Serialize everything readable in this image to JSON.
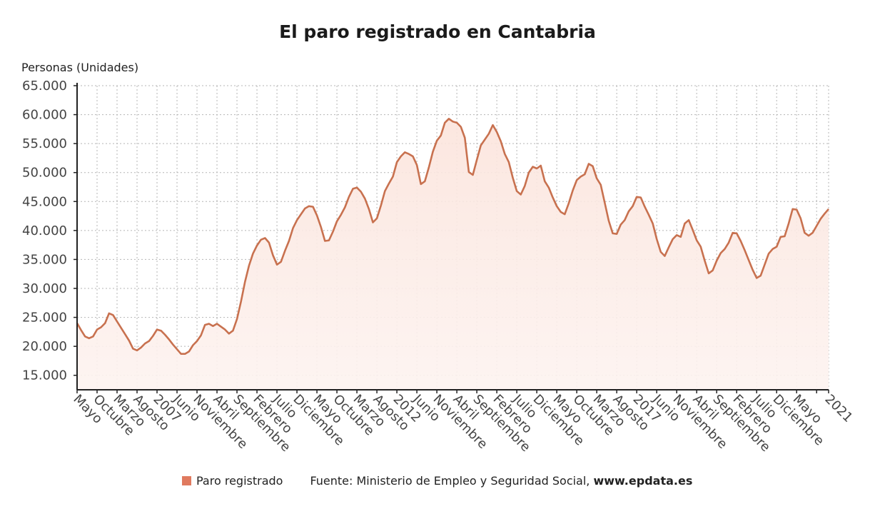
{
  "chart_data": {
    "type": "area",
    "title": "El paro registrado en Cantabria",
    "ylabel": "Personas (Unidades)",
    "xlabel": "",
    "x_start": "2005-05",
    "x_end": "2021-01",
    "x_frequency": "monthly",
    "ylim": [
      12500,
      65000
    ],
    "y_ticks": [
      15000,
      20000,
      25000,
      30000,
      35000,
      40000,
      45000,
      50000,
      55000,
      60000,
      65000
    ],
    "y_tick_labels": [
      "15.000",
      "20.000",
      "25.000",
      "30.000",
      "35.000",
      "40.000",
      "45.000",
      "50.000",
      "55.000",
      "60.000",
      "65.000"
    ],
    "grid": true,
    "legend_position": "bottom",
    "colors": {
      "line": "#c8714f",
      "fill": "#fbe9e4",
      "legend_swatch": "#e07a5f"
    },
    "x_ticks": [
      {
        "date": "2005-05",
        "label": "Mayo"
      },
      {
        "date": "2005-10",
        "label": "Octubre"
      },
      {
        "date": "2006-03",
        "label": "Marzo"
      },
      {
        "date": "2006-08",
        "label": "Agosto"
      },
      {
        "date": "2007-01",
        "label": "2007"
      },
      {
        "date": "2007-06",
        "label": "Junio"
      },
      {
        "date": "2007-11",
        "label": "Noviembre"
      },
      {
        "date": "2008-04",
        "label": "Abril"
      },
      {
        "date": "2008-09",
        "label": "Septiembre"
      },
      {
        "date": "2009-02",
        "label": "Febrero"
      },
      {
        "date": "2009-07",
        "label": "Julio"
      },
      {
        "date": "2009-12",
        "label": "Diciembre"
      },
      {
        "date": "2010-05",
        "label": "Mayo"
      },
      {
        "date": "2010-10",
        "label": "Octubre"
      },
      {
        "date": "2011-03",
        "label": "Marzo"
      },
      {
        "date": "2011-08",
        "label": "Agosto"
      },
      {
        "date": "2012-01",
        "label": "2012"
      },
      {
        "date": "2012-06",
        "label": "Junio"
      },
      {
        "date": "2012-11",
        "label": "Noviembre"
      },
      {
        "date": "2013-04",
        "label": "Abril"
      },
      {
        "date": "2013-09",
        "label": "Septiembre"
      },
      {
        "date": "2014-02",
        "label": "Febrero"
      },
      {
        "date": "2014-07",
        "label": "Julio"
      },
      {
        "date": "2014-12",
        "label": "Diciembre"
      },
      {
        "date": "2015-05",
        "label": "Mayo"
      },
      {
        "date": "2015-10",
        "label": "Octubre"
      },
      {
        "date": "2016-03",
        "label": "Marzo"
      },
      {
        "date": "2016-08",
        "label": "Agosto"
      },
      {
        "date": "2017-01",
        "label": "2017"
      },
      {
        "date": "2017-06",
        "label": "Junio"
      },
      {
        "date": "2017-11",
        "label": "Noviembre"
      },
      {
        "date": "2018-04",
        "label": "Abril"
      },
      {
        "date": "2018-09",
        "label": "Septiembre"
      },
      {
        "date": "2019-02",
        "label": "Febrero"
      },
      {
        "date": "2019-07",
        "label": "Julio"
      },
      {
        "date": "2019-12",
        "label": "Diciembre"
      },
      {
        "date": "2020-05",
        "label": "Mayo"
      },
      {
        "date": "2021-01",
        "label": "2021"
      }
    ],
    "series": [
      {
        "name": "Paro registrado",
        "values": [
          24000,
          22800,
          21700,
          21400,
          21700,
          22900,
          23300,
          24000,
          25700,
          25400,
          24300,
          23200,
          22100,
          21000,
          19600,
          19300,
          19800,
          20500,
          20900,
          21800,
          22900,
          22700,
          22000,
          21200,
          20300,
          19500,
          18700,
          18700,
          19100,
          20200,
          20900,
          21900,
          23700,
          23900,
          23500,
          23900,
          23400,
          22900,
          22200,
          22700,
          24700,
          27700,
          31100,
          33900,
          36000,
          37400,
          38400,
          38700,
          37900,
          35700,
          34100,
          34600,
          36500,
          38200,
          40400,
          41800,
          42800,
          43800,
          44200,
          44100,
          42600,
          40600,
          38200,
          38300,
          39800,
          41600,
          42700,
          44000,
          45800,
          47200,
          47400,
          46700,
          45500,
          43700,
          41400,
          42100,
          44300,
          46800,
          48100,
          49300,
          51800,
          52800,
          53500,
          53200,
          52800,
          51300,
          48000,
          48500,
          50900,
          53600,
          55500,
          56400,
          58600,
          59300,
          58800,
          58600,
          57900,
          56000,
          50100,
          49600,
          52200,
          54700,
          55700,
          56700,
          58200,
          57000,
          55400,
          53200,
          51800,
          49100,
          46800,
          46200,
          47700,
          50000,
          51000,
          50700,
          51200,
          48500,
          47400,
          45700,
          44200,
          43200,
          42800,
          44700,
          46900,
          48700,
          49300,
          49700,
          51500,
          51100,
          49000,
          47900,
          44800,
          41700,
          39500,
          39400,
          41000,
          41800,
          43300,
          44200,
          45800,
          45700,
          44100,
          42700,
          41200,
          38500,
          36300,
          35600,
          37100,
          38500,
          39200,
          38900,
          41200,
          41800,
          40100,
          38300,
          37200,
          34800,
          32600,
          33100,
          34800,
          36100,
          36800,
          37900,
          39600,
          39500,
          38200,
          36600,
          34900,
          33200,
          31800,
          32200,
          34100,
          36000,
          36800,
          37200,
          38900,
          39000,
          41200,
          43700,
          43600,
          42100,
          39600,
          39100,
          39600,
          40800,
          42000,
          42900,
          43700
        ]
      }
    ]
  },
  "legend": {
    "series_label": "Paro registrado",
    "source_prefix": "Fuente: Ministerio de Empleo y Seguridad Social, ",
    "source_site": "www.epdata.es"
  }
}
